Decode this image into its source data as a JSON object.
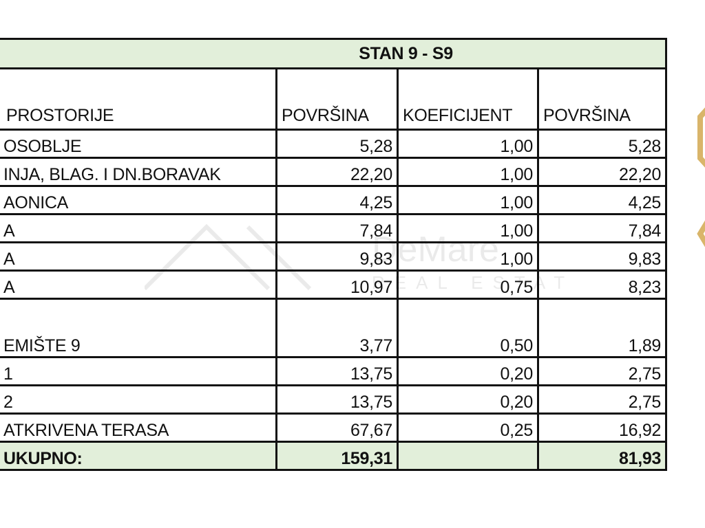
{
  "title": "STAN 9 - S9",
  "headers": [
    "PROSTORIJE",
    "POVRŠINA",
    "KOEFICIJENT",
    "POVRŠINA"
  ],
  "rows": [
    {
      "name": "OSOBLJE",
      "area": "5,28",
      "coef": "1,00",
      "net": "5,28"
    },
    {
      "name": "INJA, BLAG. I DN.BORAVAK",
      "area": "22,20",
      "coef": "1,00",
      "net": "22,20"
    },
    {
      "name": "AONICA",
      "area": "4,25",
      "coef": "1,00",
      "net": "4,25"
    },
    {
      "name": "A",
      "area": "7,84",
      "coef": "1,00",
      "net": "7,84"
    },
    {
      "name": "A",
      "area": "9,83",
      "coef": "1,00",
      "net": "9,83"
    },
    {
      "name": "A",
      "area": "10,97",
      "coef": "0,75",
      "net": "8,23"
    },
    {
      "name": "EMIŠTE 9",
      "area": "3,77",
      "coef": "0,50",
      "net": "1,89"
    },
    {
      "name": "1",
      "area": "13,75",
      "coef": "0,20",
      "net": "2,75"
    },
    {
      "name": "2",
      "area": "13,75",
      "coef": "0,20",
      "net": "2,75"
    },
    {
      "name": "ATKRIVENA TERASA",
      "area": "67,67",
      "coef": "0,25",
      "net": "16,92"
    }
  ],
  "total": {
    "label": "UKUPNO:",
    "area": "159,31",
    "coef": "",
    "net": "81,93"
  },
  "watermark": "DeMare REAL ESTATE",
  "colors": {
    "header_fill": "#e2efda",
    "logo_gold": "#d9b56a"
  }
}
